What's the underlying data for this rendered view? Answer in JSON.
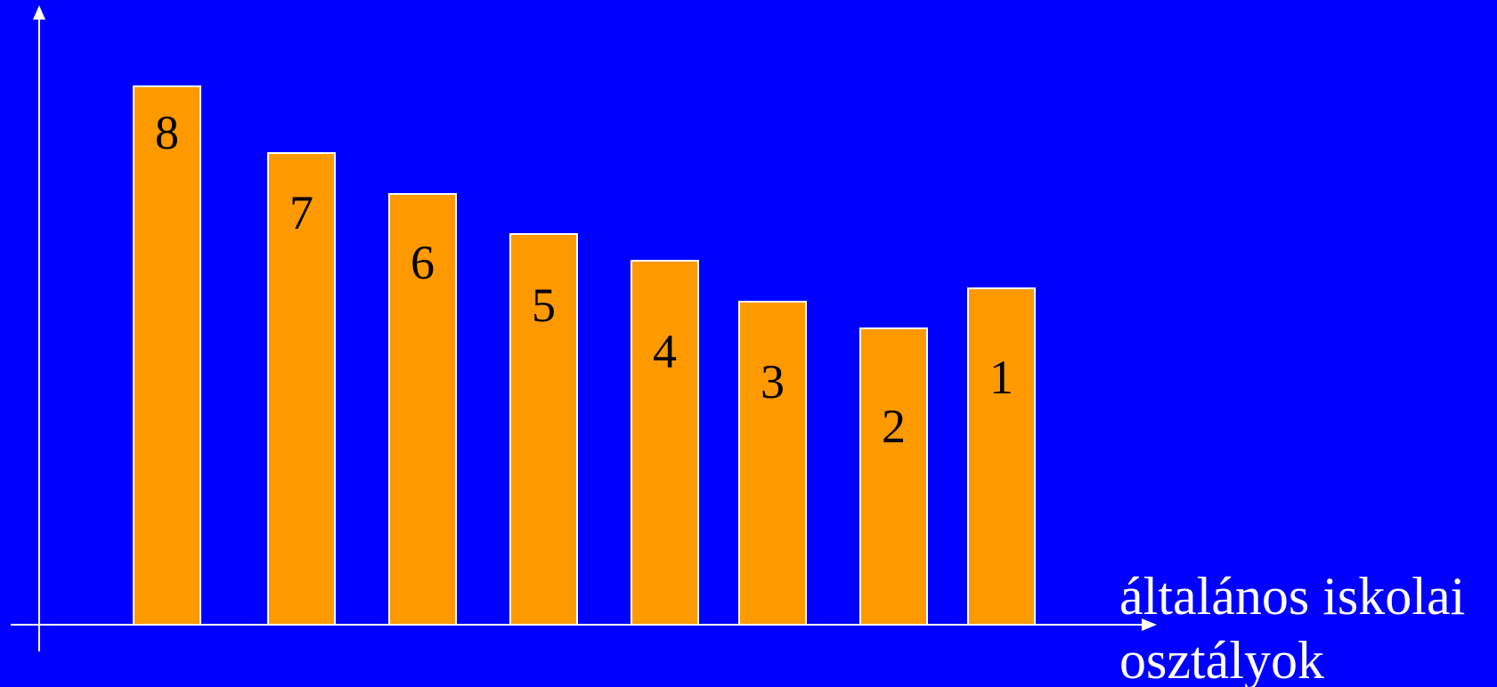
{
  "chart_data": {
    "type": "bar",
    "categories": [
      "8",
      "7",
      "6",
      "5",
      "4",
      "3",
      "2",
      "1"
    ],
    "values": [
      605,
      530,
      484,
      439,
      409,
      363,
      333,
      378
    ],
    "bar_labels": [
      "8",
      "7",
      "6",
      "5",
      "4",
      "3",
      "2",
      "1"
    ],
    "xlabel": "általános iskolai osztályok",
    "xlabel_lines": [
      "általános iskolai",
      "osztályok"
    ],
    "ylabel": "",
    "grid": false,
    "legend": "none"
  },
  "colors": {
    "background": "#0000ff",
    "bar_fill": "#ff9900",
    "bar_stroke": "#ffffff",
    "axis": "#ffffff",
    "bar_text": "#000000",
    "label_text": "#ffffff"
  }
}
